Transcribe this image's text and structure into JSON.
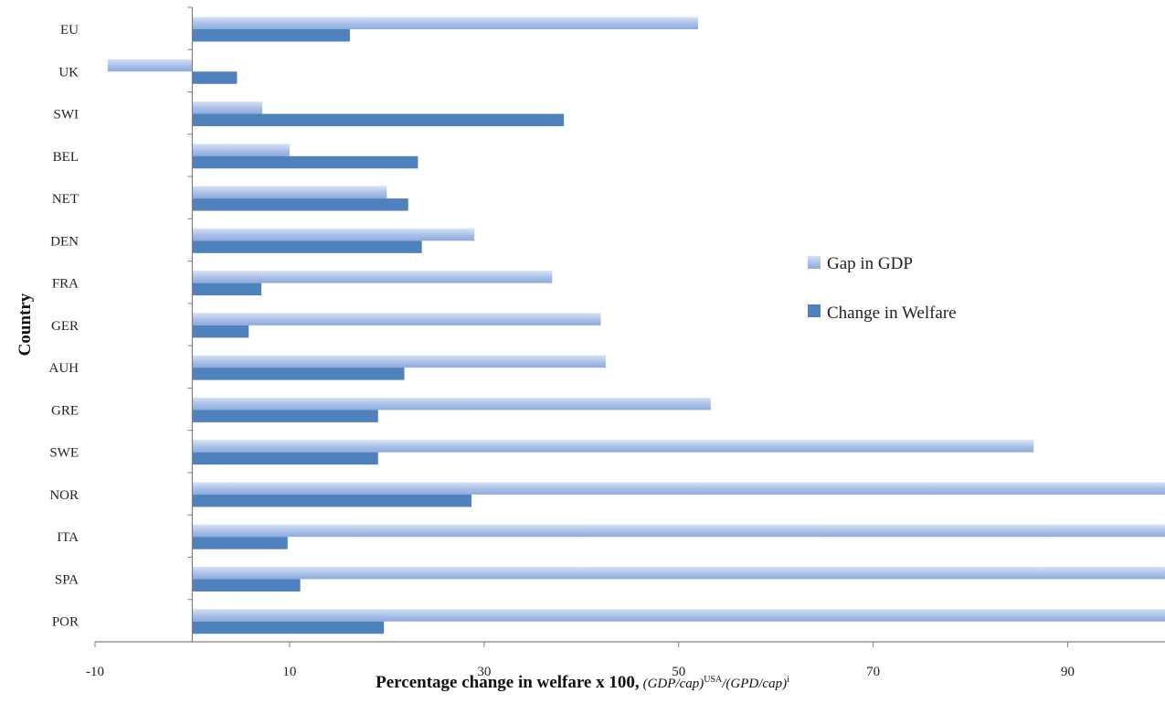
{
  "chart_data": {
    "type": "bar",
    "orientation": "horizontal",
    "categories": [
      "EU",
      "UK",
      "SWI",
      "BEL",
      "NET",
      "DEN",
      "FRA",
      "GER",
      "AUH",
      "GRE",
      "SWE",
      "NOR",
      "ITA",
      "SPA",
      "POR"
    ],
    "series": [
      {
        "name": "Gap in GDP",
        "color": "#a9bfe6",
        "values": [
          52,
          -8.7,
          7.2,
          10,
          20,
          29,
          37,
          42,
          42.5,
          53.3,
          86.5,
          100,
          100,
          100,
          100
        ]
      },
      {
        "name": "Change in Welfare",
        "color": "#4f81bd",
        "values": [
          16.2,
          4.6,
          38.2,
          23.2,
          22.2,
          23.6,
          7.1,
          5.8,
          21.8,
          19.1,
          19.1,
          28.7,
          9.8,
          11.1,
          19.7
        ]
      }
    ],
    "xlim": [
      -10,
      100
    ],
    "xticks": [
      "-10",
      "10",
      "30",
      "50",
      "70",
      "90"
    ],
    "xtick_values": [
      -10,
      10,
      30,
      50,
      70,
      90
    ],
    "ylabel": "Country",
    "xlabel_main": "Percentage change in welfare x 100,",
    "xlabel_formula": {
      "a": "(GDP/cap)",
      "sup1": "USA",
      "b": "/(GPD/cap)",
      "sup2": "i"
    },
    "legend_position": "right",
    "grid": false
  }
}
